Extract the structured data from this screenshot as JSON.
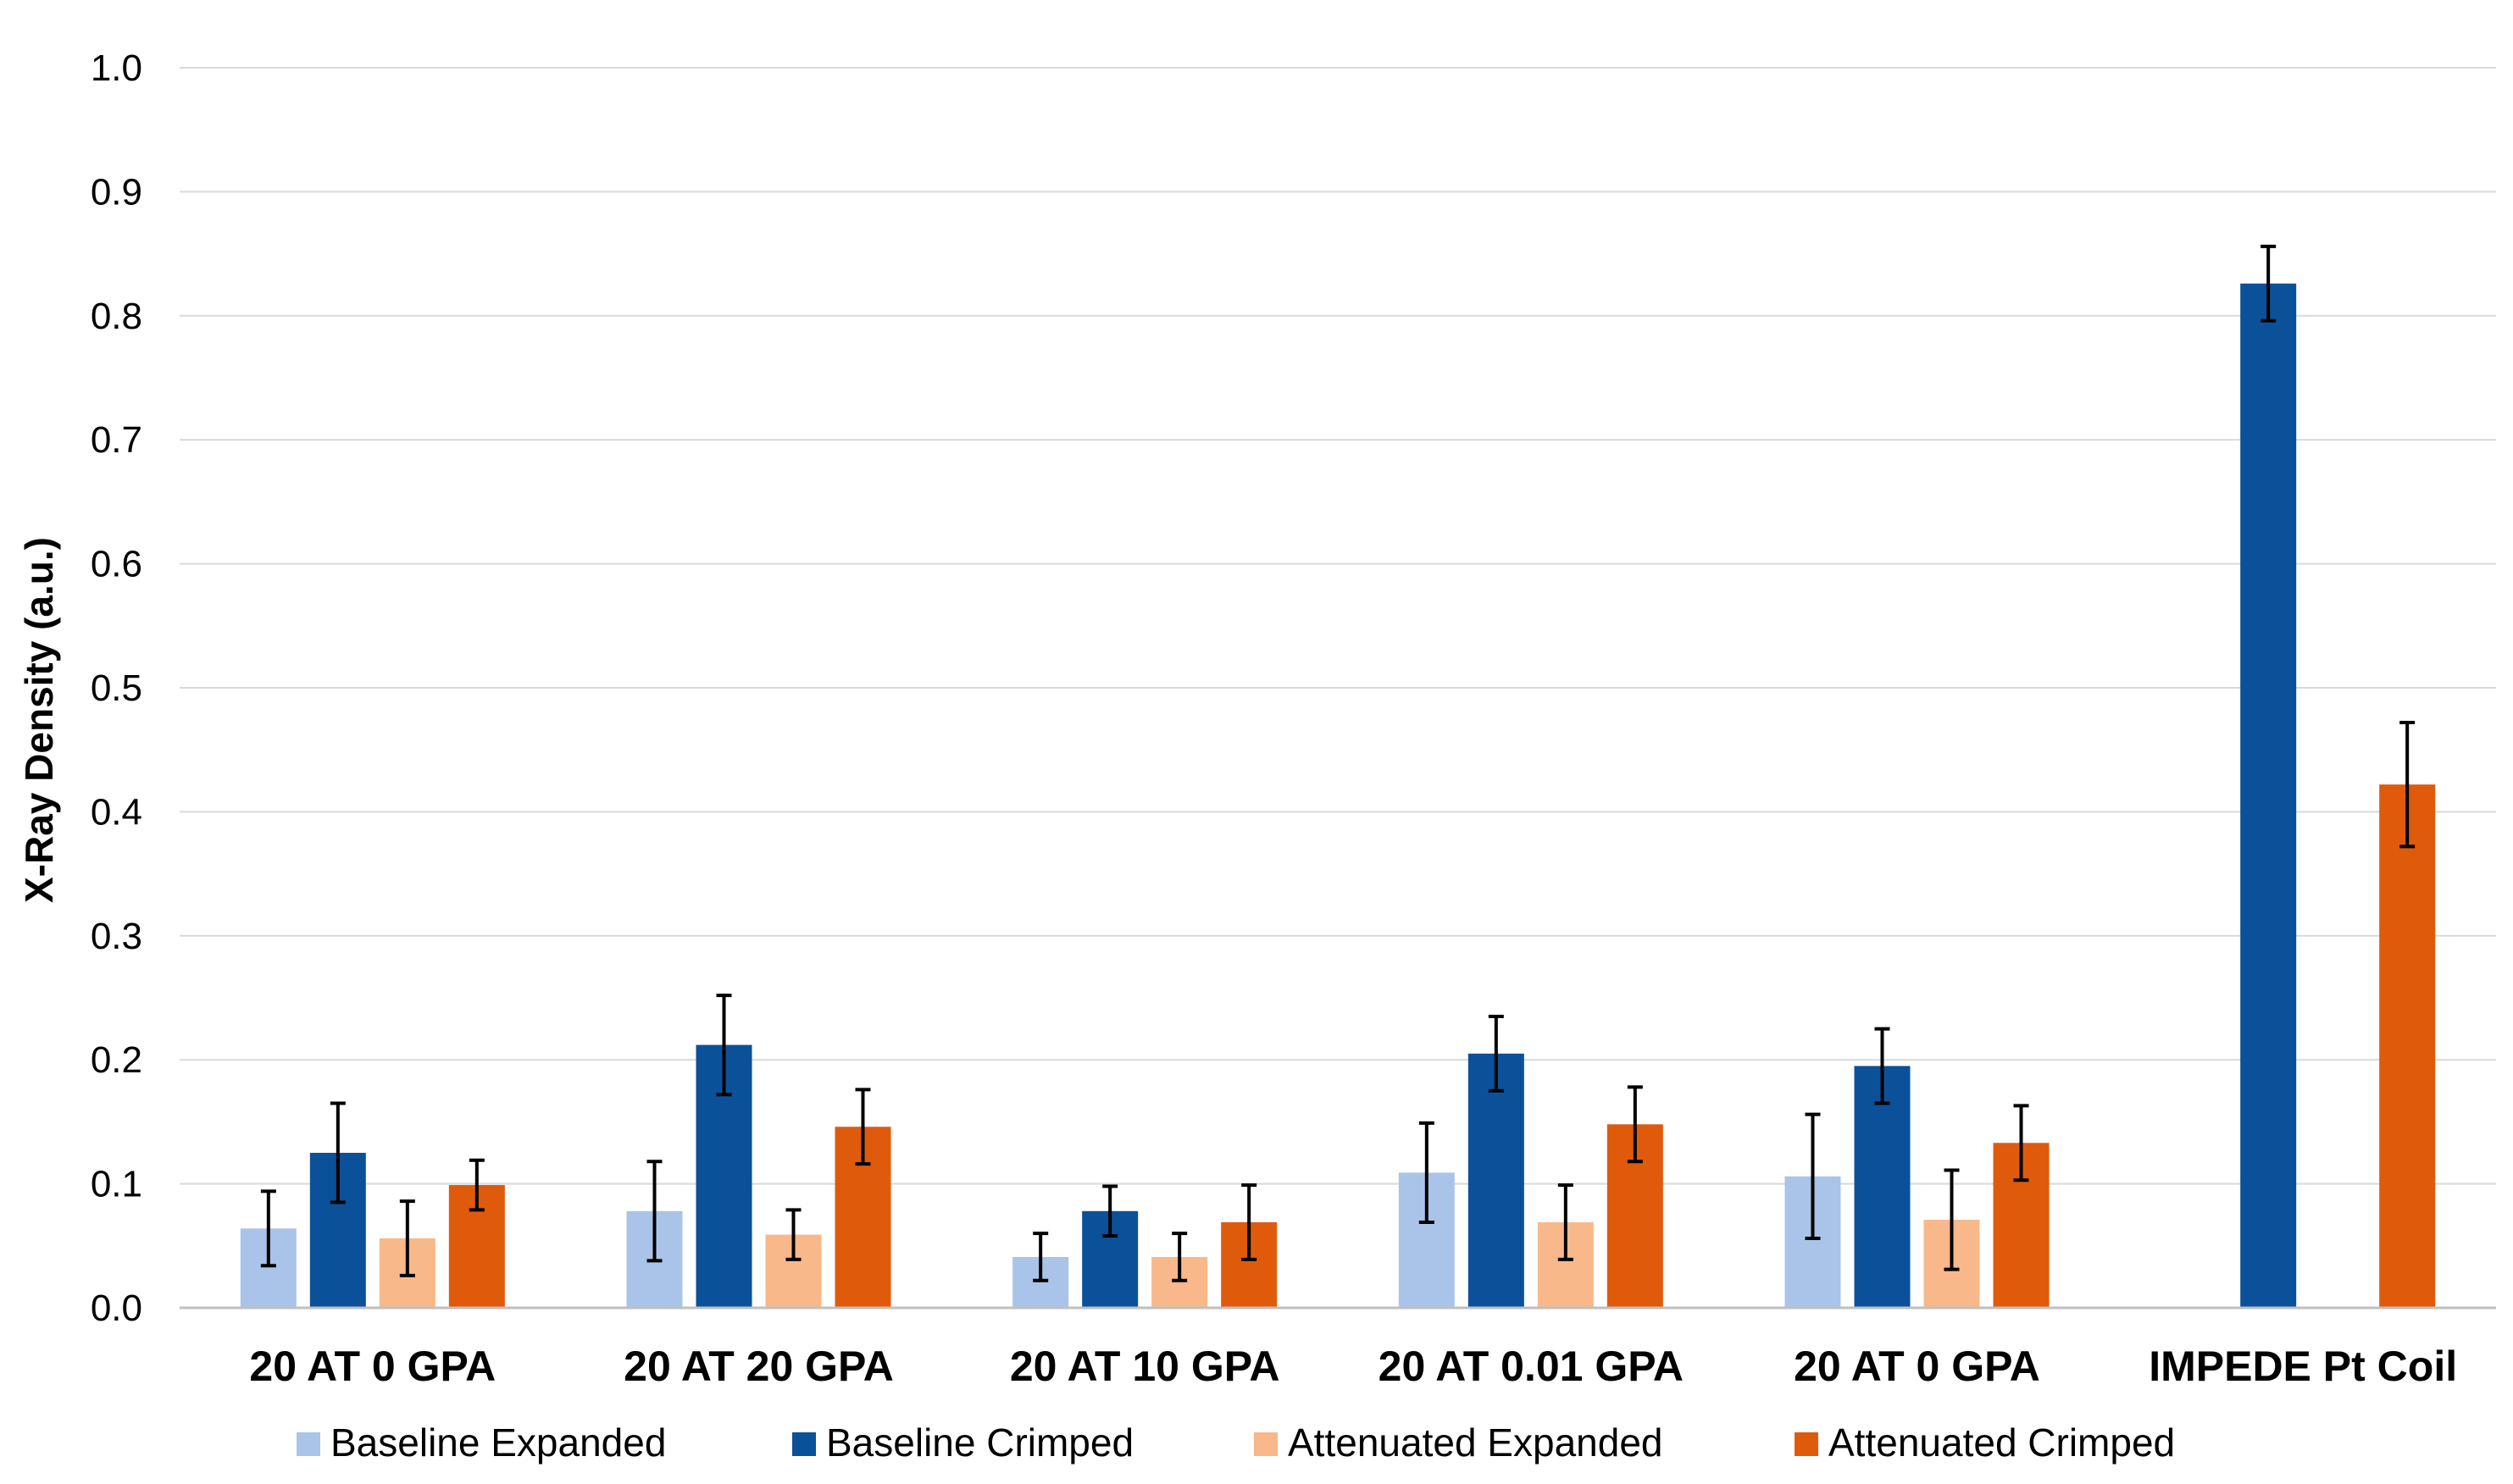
{
  "chart_data": {
    "type": "bar",
    "title": "",
    "xlabel": "",
    "ylabel": "X-Ray Density (a.u.)",
    "ylim": [
      0,
      1.0
    ],
    "yticks": [
      "0.0",
      "0.1",
      "0.2",
      "0.3",
      "0.4",
      "0.5",
      "0.6",
      "0.7",
      "0.8",
      "0.9",
      "1.0"
    ],
    "grid": true,
    "legend_position": "bottom",
    "categories": [
      "20 AT 0 GPA",
      "20 AT 20 GPA",
      "20 AT 10 GPA",
      "20 AT 0.01 GPA",
      "20 AT 0 GPA",
      "IMPEDE Pt Coil"
    ],
    "series": [
      {
        "name": "Baseline Expanded",
        "color": "#a9c4e8",
        "values": [
          0.064,
          0.078,
          0.041,
          0.109,
          0.106,
          null
        ],
        "errors": [
          0.03,
          0.04,
          0.019,
          0.04,
          0.05,
          null
        ]
      },
      {
        "name": "Baseline Crimped",
        "color": "#0b519a",
        "values": [
          0.125,
          0.212,
          0.078,
          0.205,
          0.195,
          0.826
        ],
        "errors": [
          0.04,
          0.04,
          0.02,
          0.03,
          0.03,
          0.03
        ]
      },
      {
        "name": "Attenuated Expanded",
        "color": "#f9b88a",
        "values": [
          0.056,
          0.059,
          0.041,
          0.069,
          0.071,
          null
        ],
        "errors": [
          0.03,
          0.02,
          0.019,
          0.03,
          0.04,
          null
        ]
      },
      {
        "name": "Attenuated Crimped",
        "color": "#e05a0c",
        "values": [
          0.099,
          0.146,
          0.069,
          0.148,
          0.133,
          0.422
        ],
        "errors": [
          0.02,
          0.03,
          0.03,
          0.03,
          0.03,
          0.05
        ]
      }
    ]
  }
}
